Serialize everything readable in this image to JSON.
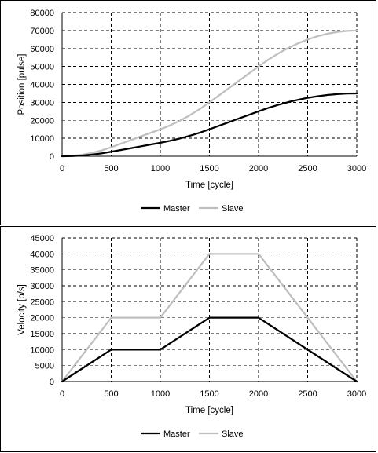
{
  "colors": {
    "master": "#000000",
    "slave": "#bfbfbf",
    "grid": "#000000",
    "background": "#ffffff"
  },
  "chart_data": [
    {
      "type": "line",
      "title": "",
      "xlabel": "Time [cycle]",
      "ylabel": "Position [pulse]",
      "xlim": [
        0,
        3000
      ],
      "ylim": [
        0,
        80000
      ],
      "xticks": [
        "0",
        "500",
        "1000",
        "1500",
        "2000",
        "2500",
        "3000"
      ],
      "yticks": [
        "0",
        "10000",
        "20000",
        "30000",
        "40000",
        "50000",
        "60000",
        "70000",
        "80000"
      ],
      "grid": "dashed, both axes",
      "legend": "bottom",
      "series": [
        {
          "name": "Master",
          "x": [
            0,
            100,
            200,
            300,
            400,
            500,
            600,
            700,
            800,
            900,
            1000,
            1100,
            1200,
            1300,
            1400,
            1500,
            1600,
            1700,
            1800,
            1900,
            2000,
            2100,
            2200,
            2300,
            2400,
            2500,
            2600,
            2700,
            2800,
            2900,
            3000
          ],
          "y": [
            0,
            100,
            400,
            900,
            1600,
            2500,
            3500,
            4500,
            5500,
            6500,
            7500,
            8600,
            9900,
            11400,
            13100,
            15000,
            17000,
            19000,
            21000,
            23000,
            25000,
            26900,
            28600,
            30100,
            31400,
            32500,
            33400,
            34100,
            34600,
            34900,
            35000
          ]
        },
        {
          "name": "Slave",
          "x": [
            0,
            100,
            200,
            300,
            400,
            500,
            600,
            700,
            800,
            900,
            1000,
            1100,
            1200,
            1300,
            1400,
            1500,
            1600,
            1700,
            1800,
            1900,
            2000,
            2100,
            2200,
            2300,
            2400,
            2500,
            2600,
            2700,
            2800,
            2900,
            3000
          ],
          "y": [
            0,
            200,
            800,
            1800,
            3200,
            5000,
            7000,
            9000,
            11000,
            13000,
            15000,
            17200,
            19800,
            22800,
            26200,
            30000,
            34000,
            38000,
            42000,
            46000,
            50000,
            53800,
            57200,
            60200,
            62800,
            65000,
            66800,
            68200,
            69200,
            69800,
            70000
          ]
        }
      ]
    },
    {
      "type": "line",
      "title": "",
      "xlabel": "Time [cycle]",
      "ylabel": "Velocity [p/s]",
      "xlim": [
        0,
        3000
      ],
      "ylim": [
        0,
        45000
      ],
      "xticks": [
        "0",
        "500",
        "1000",
        "1500",
        "2000",
        "2500",
        "3000"
      ],
      "yticks": [
        "0",
        "5000",
        "10000",
        "15000",
        "20000",
        "25000",
        "30000",
        "35000",
        "40000",
        "45000"
      ],
      "grid": "dashed, both axes",
      "legend": "bottom",
      "series": [
        {
          "name": "Master",
          "x": [
            0,
            500,
            1000,
            1500,
            2000,
            3000
          ],
          "y": [
            0,
            10000,
            10000,
            20000,
            20000,
            0
          ]
        },
        {
          "name": "Slave",
          "x": [
            0,
            500,
            1000,
            1500,
            2000,
            3000
          ],
          "y": [
            0,
            20000,
            20000,
            40000,
            40000,
            0
          ]
        }
      ]
    }
  ]
}
